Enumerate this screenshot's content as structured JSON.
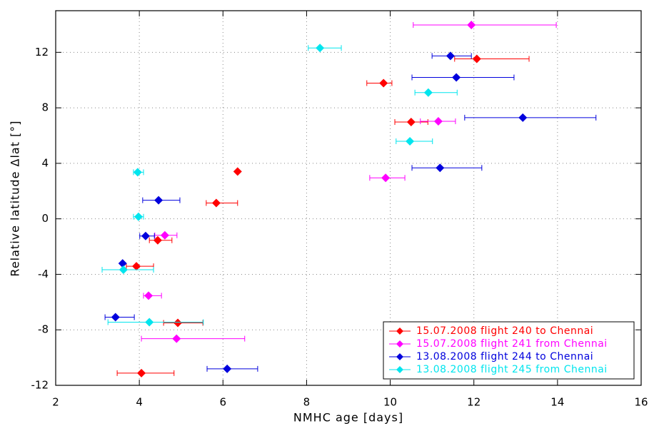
{
  "chart_data": {
    "type": "scatter",
    "xlabel": "NMHC age [days]",
    "ylabel": "Relative latitude Δlat [°]",
    "xlim": [
      2,
      16
    ],
    "ylim": [
      -12,
      15
    ],
    "xticks": [
      2,
      4,
      6,
      8,
      10,
      12,
      14,
      16
    ],
    "yticks": [
      -12,
      -8,
      -4,
      0,
      4,
      8,
      12
    ],
    "grid": true,
    "legend": "lower right",
    "series": [
      {
        "name": "15.07.2008 flight 240 to Chennai",
        "color": "#ff0000",
        "x": [
          12.07,
          9.84,
          10.5,
          6.35,
          5.84,
          4.44,
          3.93,
          4.92,
          4.05
        ],
        "values": [
          11.53,
          9.78,
          6.98,
          3.41,
          1.14,
          -1.55,
          -3.42,
          -7.5,
          -11.12
        ],
        "xmin": [
          11.54,
          9.44,
          10.11,
          null,
          5.6,
          4.24,
          3.69,
          4.58,
          3.47
        ],
        "xmax": [
          13.32,
          10.04,
          10.9,
          null,
          6.35,
          4.78,
          4.34,
          5.52,
          4.83
        ]
      },
      {
        "name": "15.07.2008 flight 241 from Chennai",
        "color": "#ff00ff",
        "x": [
          11.94,
          11.15,
          9.89,
          4.61,
          4.22,
          4.89
        ],
        "values": [
          13.97,
          7.03,
          2.95,
          -1.19,
          -5.54,
          -8.64
        ],
        "xmin": [
          10.55,
          10.72,
          9.51,
          4.37,
          4.1,
          4.05
        ],
        "xmax": [
          13.97,
          11.56,
          10.35,
          4.9,
          4.53,
          6.52
        ]
      },
      {
        "name": "13.08.2008 flight 244 to Chennai",
        "color": "#0000dd",
        "x": [
          11.44,
          11.58,
          13.17,
          11.19,
          4.46,
          4.15,
          3.6,
          3.43,
          6.1
        ],
        "values": [
          11.74,
          10.19,
          7.29,
          3.67,
          1.34,
          -1.24,
          -3.21,
          -7.09,
          -10.81
        ],
        "xmin": [
          11.0,
          10.52,
          11.78,
          10.52,
          4.08,
          4.01,
          null,
          3.18,
          5.62
        ],
        "xmax": [
          11.94,
          12.96,
          14.92,
          12.19,
          4.97,
          4.36,
          null,
          3.88,
          6.83
        ]
      },
      {
        "name": "13.08.2008 flight 245 from Chennai",
        "color": "#00e5ee",
        "x": [
          8.32,
          10.91,
          10.47,
          3.96,
          3.98,
          3.62,
          4.24
        ],
        "values": [
          12.31,
          9.1,
          5.59,
          3.36,
          0.15,
          -3.67,
          -7.45
        ],
        "xmin": [
          8.04,
          10.59,
          10.14,
          3.86,
          3.86,
          3.11,
          3.25
        ],
        "xmax": [
          8.83,
          11.6,
          11.01,
          4.1,
          4.1,
          4.34,
          5.53
        ]
      }
    ]
  }
}
